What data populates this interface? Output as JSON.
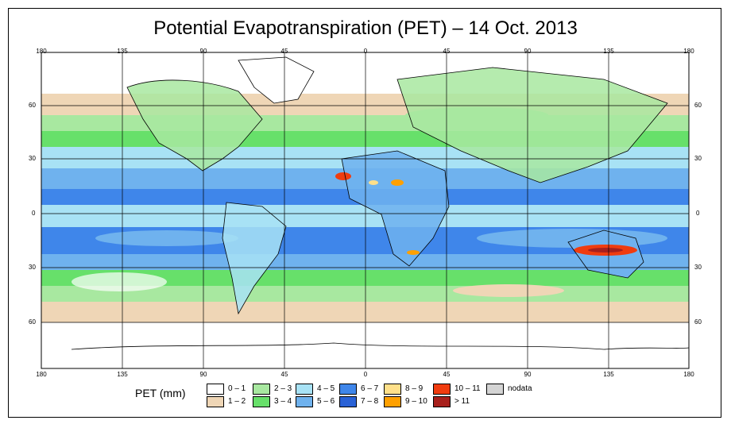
{
  "title": "Potential Evapotranspiration (PET) – 14 Oct. 2013",
  "colors": {
    "ocean_blue_light": "#9ad8ef",
    "band_blue": "#6fb2ee",
    "band_deep": "#2f6ee0",
    "green_light": "#a8e8a0",
    "green": "#67e06a",
    "tan": "#efd6b6",
    "orange": "#ffa000",
    "red": "#f03c0f"
  },
  "axes": {
    "lon_labels": [
      "180",
      "135",
      "90",
      "45",
      "0",
      "45",
      "90",
      "135",
      "180"
    ],
    "lat_labels": [
      "60",
      "30",
      "0",
      "30",
      "60"
    ]
  },
  "legend": {
    "title": "PET (mm)",
    "entries": [
      {
        "label": "0 – 1",
        "color": "#ffffff"
      },
      {
        "label": "1 – 2",
        "color": "#efd6b6"
      },
      {
        "label": "2 – 3",
        "color": "#a8e8a0"
      },
      {
        "label": "3 – 4",
        "color": "#67e06a"
      },
      {
        "label": "4 – 5",
        "color": "#a8e2f5"
      },
      {
        "label": "5 – 6",
        "color": "#6fb2ee"
      },
      {
        "label": "6 – 7",
        "color": "#3f86ea"
      },
      {
        "label": "7 – 8",
        "color": "#2a62d6"
      },
      {
        "label": "8 – 9",
        "color": "#ffe08a"
      },
      {
        "label": "9 – 10",
        "color": "#ffa000"
      },
      {
        "label": "10 – 11",
        "color": "#f03c0f"
      },
      {
        "label": "> 11",
        "color": "#a8201c"
      },
      {
        "label": "nodata",
        "color": "#d4d4d4"
      }
    ]
  }
}
